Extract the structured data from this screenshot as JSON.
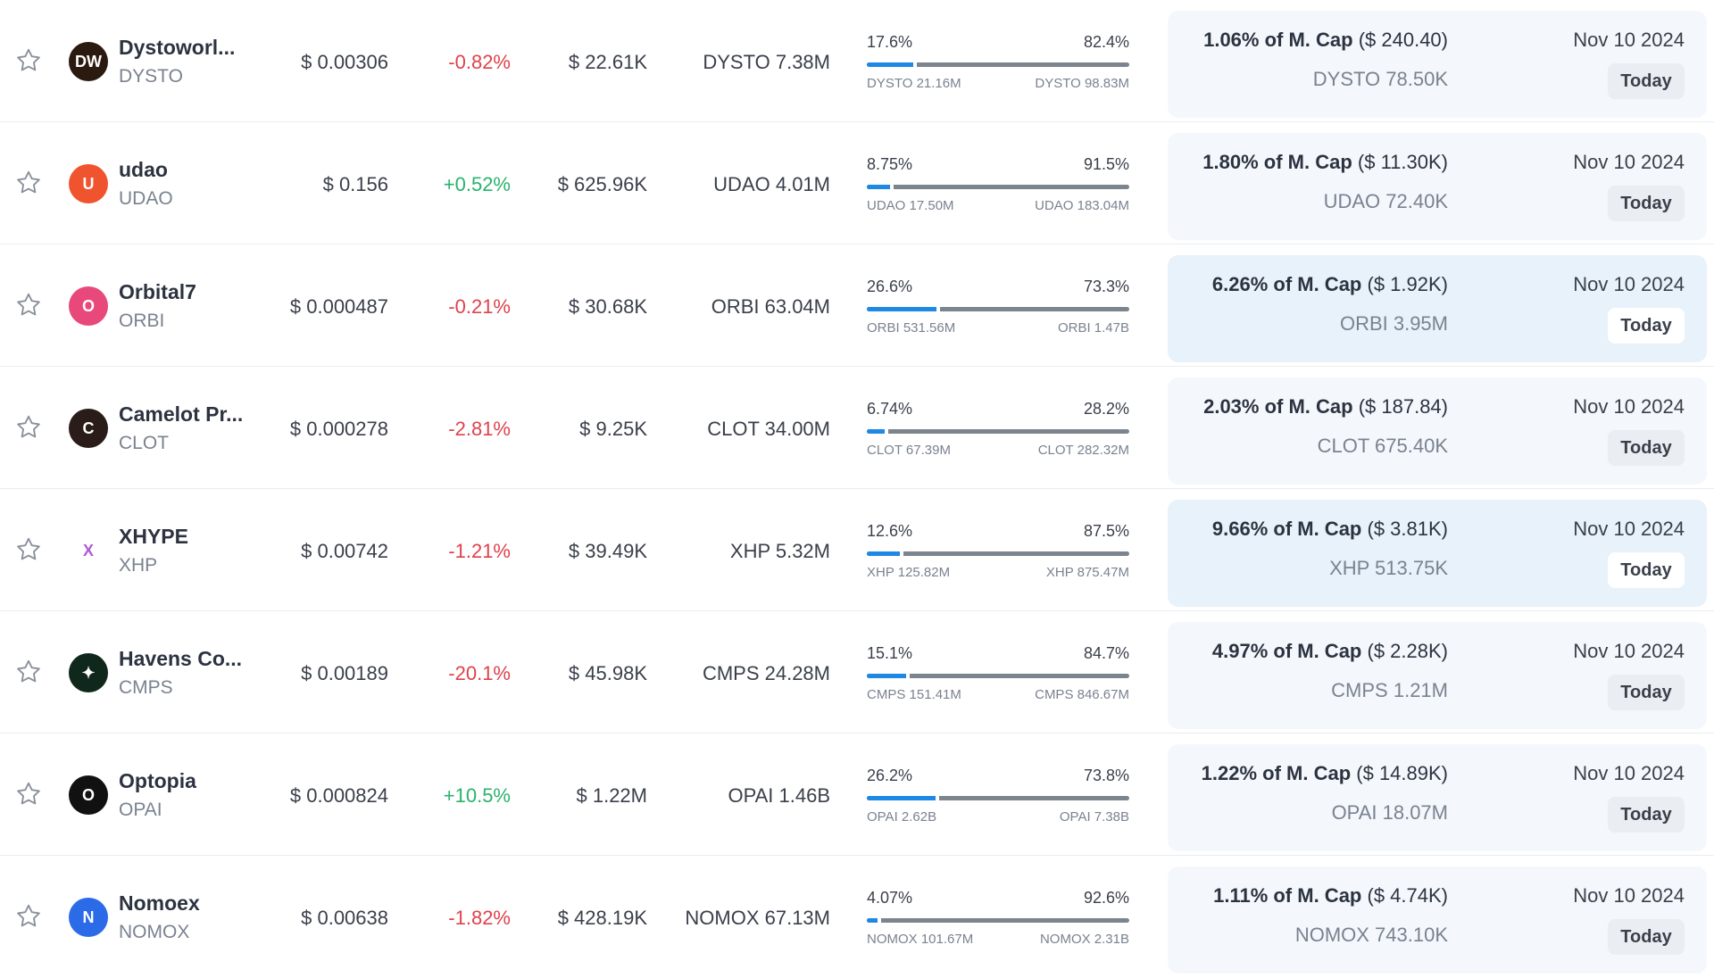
{
  "rows": [
    {
      "name": "Dystoworl...",
      "symbol": "DYSTO",
      "price": "$ 0.00306",
      "change": "-0.82%",
      "change_dir": "neg",
      "volume": "$ 22.61K",
      "unlock_amount": "DYSTO 7.38M",
      "pct_left": "17.6%",
      "pct_right": "82.4%",
      "progress": 0.176,
      "amt_left": "DYSTO 21.16M",
      "amt_right": "DYSTO 98.83M",
      "mcap_pct": "1.06% of M. Cap",
      "mcap_val": "($ 240.40)",
      "locked": "DYSTO 78.50K",
      "date": "Nov 10 2024",
      "today": "Today",
      "highlight": false,
      "logo_color": "#2a1a10",
      "logo_label": "DW"
    },
    {
      "name": "udao",
      "symbol": "UDAO",
      "price": "$ 0.156",
      "change": "+0.52%",
      "change_dir": "pos",
      "volume": "$ 625.96K",
      "unlock_amount": "UDAO 4.01M",
      "pct_left": "8.75%",
      "pct_right": "91.5%",
      "progress": 0.0875,
      "amt_left": "UDAO 17.50M",
      "amt_right": "UDAO 183.04M",
      "mcap_pct": "1.80% of M. Cap",
      "mcap_val": "($ 11.30K)",
      "locked": "UDAO 72.40K",
      "date": "Nov 10 2024",
      "today": "Today",
      "highlight": false,
      "logo_color": "#f0542e",
      "logo_label": "U"
    },
    {
      "name": "Orbital7",
      "symbol": "ORBI",
      "price": "$ 0.000487",
      "change": "-0.21%",
      "change_dir": "neg",
      "volume": "$ 30.68K",
      "unlock_amount": "ORBI 63.04M",
      "pct_left": "26.6%",
      "pct_right": "73.3%",
      "progress": 0.266,
      "amt_left": "ORBI 531.56M",
      "amt_right": "ORBI 1.47B",
      "mcap_pct": "6.26% of M. Cap",
      "mcap_val": "($ 1.92K)",
      "locked": "ORBI 3.95M",
      "date": "Nov 10 2024",
      "today": "Today",
      "highlight": true,
      "logo_color": "#e8487a",
      "logo_label": "O"
    },
    {
      "name": "Camelot Pr...",
      "symbol": "CLOT",
      "price": "$ 0.000278",
      "change": "-2.81%",
      "change_dir": "neg",
      "volume": "$ 9.25K",
      "unlock_amount": "CLOT 34.00M",
      "pct_left": "6.74%",
      "pct_right": "28.2%",
      "progress": 0.0674,
      "amt_left": "CLOT 67.39M",
      "amt_right": "CLOT 282.32M",
      "mcap_pct": "2.03% of M. Cap",
      "mcap_val": "($ 187.84)",
      "locked": "CLOT 675.40K",
      "date": "Nov 10 2024",
      "today": "Today",
      "highlight": false,
      "logo_color": "#2a1c18",
      "logo_label": "C"
    },
    {
      "name": "XHYPE",
      "symbol": "XHP",
      "price": "$ 0.00742",
      "change": "-1.21%",
      "change_dir": "neg",
      "volume": "$ 39.49K",
      "unlock_amount": "XHP 5.32M",
      "pct_left": "12.6%",
      "pct_right": "87.5%",
      "progress": 0.126,
      "amt_left": "XHP 125.82M",
      "amt_right": "XHP 875.47M",
      "mcap_pct": "9.66% of M. Cap",
      "mcap_val": "($ 3.81K)",
      "locked": "XHP 513.75K",
      "date": "Nov 10 2024",
      "today": "Today",
      "highlight": true,
      "logo_color": "#ffffff",
      "logo_label": "X"
    },
    {
      "name": "Havens Co...",
      "symbol": "CMPS",
      "price": "$ 0.00189",
      "change": "-20.1%",
      "change_dir": "neg",
      "volume": "$ 45.98K",
      "unlock_amount": "CMPS 24.28M",
      "pct_left": "15.1%",
      "pct_right": "84.7%",
      "progress": 0.151,
      "amt_left": "CMPS 151.41M",
      "amt_right": "CMPS 846.67M",
      "mcap_pct": "4.97% of M. Cap",
      "mcap_val": "($ 2.28K)",
      "locked": "CMPS 1.21M",
      "date": "Nov 10 2024",
      "today": "Today",
      "highlight": false,
      "logo_color": "#10281c",
      "logo_label": "✦"
    },
    {
      "name": "Optopia",
      "symbol": "OPAI",
      "price": "$ 0.000824",
      "change": "+10.5%",
      "change_dir": "pos",
      "volume": "$ 1.22M",
      "unlock_amount": "OPAI 1.46B",
      "pct_left": "26.2%",
      "pct_right": "73.8%",
      "progress": 0.262,
      "amt_left": "OPAI 2.62B",
      "amt_right": "OPAI 7.38B",
      "mcap_pct": "1.22% of M. Cap",
      "mcap_val": "($ 14.89K)",
      "locked": "OPAI 18.07M",
      "date": "Nov 10 2024",
      "today": "Today",
      "highlight": false,
      "logo_color": "#111111",
      "logo_label": "O"
    },
    {
      "name": "Nomoex",
      "symbol": "NOMOX",
      "price": "$ 0.00638",
      "change": "-1.82%",
      "change_dir": "neg",
      "volume": "$ 428.19K",
      "unlock_amount": "NOMOX 67.13M",
      "pct_left": "4.07%",
      "pct_right": "92.6%",
      "progress": 0.0407,
      "amt_left": "NOMOX 101.67M",
      "amt_right": "NOMOX 2.31B",
      "mcap_pct": "1.11% of M. Cap",
      "mcap_val": "($ 4.74K)",
      "locked": "NOMOX 743.10K",
      "date": "Nov 10 2024",
      "today": "Today",
      "highlight": false,
      "logo_color": "#2b6be8",
      "logo_label": "N"
    }
  ]
}
